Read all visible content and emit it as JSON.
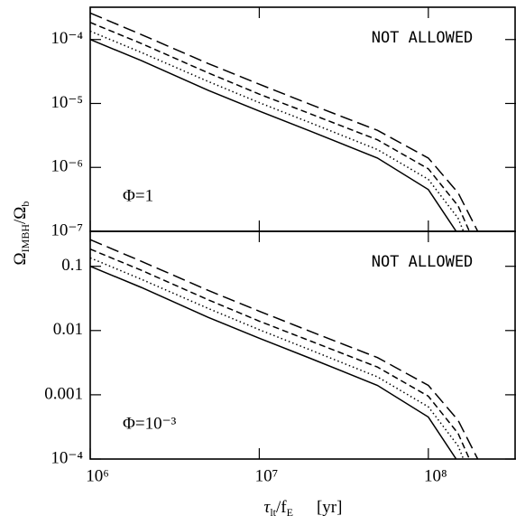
{
  "xlabel": [
    "τ",
    "lt",
    "/f",
    "E",
    "[yr]"
  ],
  "ylabel": [
    "Ω",
    "IMBH",
    "/Ω",
    "b"
  ],
  "chart_data": [
    {
      "type": "line",
      "xscale": "log",
      "yscale": "log",
      "x": [
        1000000,
        2000000,
        5000000,
        10000000,
        20000000,
        50000000,
        100000000,
        150000000,
        200000000
      ],
      "xlim": [
        1000000,
        330000000
      ],
      "ylim": [
        1e-07,
        0.00032
      ],
      "yticks": [
        {
          "value": 1e-07,
          "label": "10⁻⁷"
        },
        {
          "value": 1e-06,
          "label": "10⁻⁶"
        },
        {
          "value": 1e-05,
          "label": "10⁻⁵"
        },
        {
          "value": 0.0001,
          "label": "10⁻⁴"
        }
      ],
      "annotations": [
        "NOT ALLOWED",
        "Φ=1"
      ],
      "series": [
        {
          "color": "#000000",
          "dash": "solid",
          "values": [
            0.0001,
            4.7e-05,
            1.6e-05,
            7.6e-06,
            3.7e-06,
            1.4e-06,
            4.5e-07,
            9e-08,
            1e-08
          ]
        },
        {
          "color": "#000000",
          "dash": "dotted",
          "values": [
            0.000135,
            6.3e-05,
            2.2e-05,
            1.03e-05,
            5e-06,
            1.9e-06,
            6.5e-07,
            1.6e-07,
            2.5e-08
          ]
        },
        {
          "color": "#000000",
          "dash": "dashed",
          "values": [
            0.000185,
            8.7e-05,
            3e-05,
            1.4e-05,
            6.9e-06,
            2.7e-06,
            9.5e-07,
            2.5e-07,
            4.5e-08
          ]
        },
        {
          "color": "#000000",
          "dash": "longdash",
          "values": [
            0.00026,
            0.00012,
            4.2e-05,
            2e-05,
            9.7e-06,
            3.8e-06,
            1.4e-06,
            4e-07,
            9e-08
          ]
        }
      ]
    },
    {
      "type": "line",
      "xscale": "log",
      "yscale": "log",
      "x": [
        1000000,
        2000000,
        5000000,
        10000000,
        20000000,
        50000000,
        100000000,
        150000000,
        200000000
      ],
      "xlim": [
        1000000,
        330000000
      ],
      "xticks": [
        {
          "value": 1000000,
          "label": "10⁶"
        },
        {
          "value": 10000000,
          "label": "10⁷"
        },
        {
          "value": 100000000,
          "label": "10⁸"
        }
      ],
      "ylim": [
        0.0001,
        0.35
      ],
      "yticks": [
        {
          "value": 0.0001,
          "label": "10⁻⁴"
        },
        0.001,
        0.01,
        0.1
      ],
      "annotations": [
        "NOT ALLOWED",
        "Φ=10⁻³"
      ],
      "series": [
        {
          "color": "#000000",
          "dash": "solid",
          "values": [
            0.1,
            0.047,
            0.016,
            0.0076,
            0.0037,
            0.0014,
            0.00045,
            9e-05,
            1e-05
          ]
        },
        {
          "color": "#000000",
          "dash": "dotted",
          "values": [
            0.135,
            0.063,
            0.022,
            0.0103,
            0.005,
            0.0019,
            0.00065,
            0.00016,
            2.5e-05
          ]
        },
        {
          "color": "#000000",
          "dash": "dashed",
          "values": [
            0.185,
            0.087,
            0.03,
            0.014,
            0.0069,
            0.0027,
            0.00095,
            0.00025,
            4.5e-05
          ]
        },
        {
          "color": "#000000",
          "dash": "longdash",
          "values": [
            0.26,
            0.12,
            0.042,
            0.02,
            0.0097,
            0.0038,
            0.0014,
            0.0004,
            9e-05
          ]
        }
      ]
    }
  ]
}
